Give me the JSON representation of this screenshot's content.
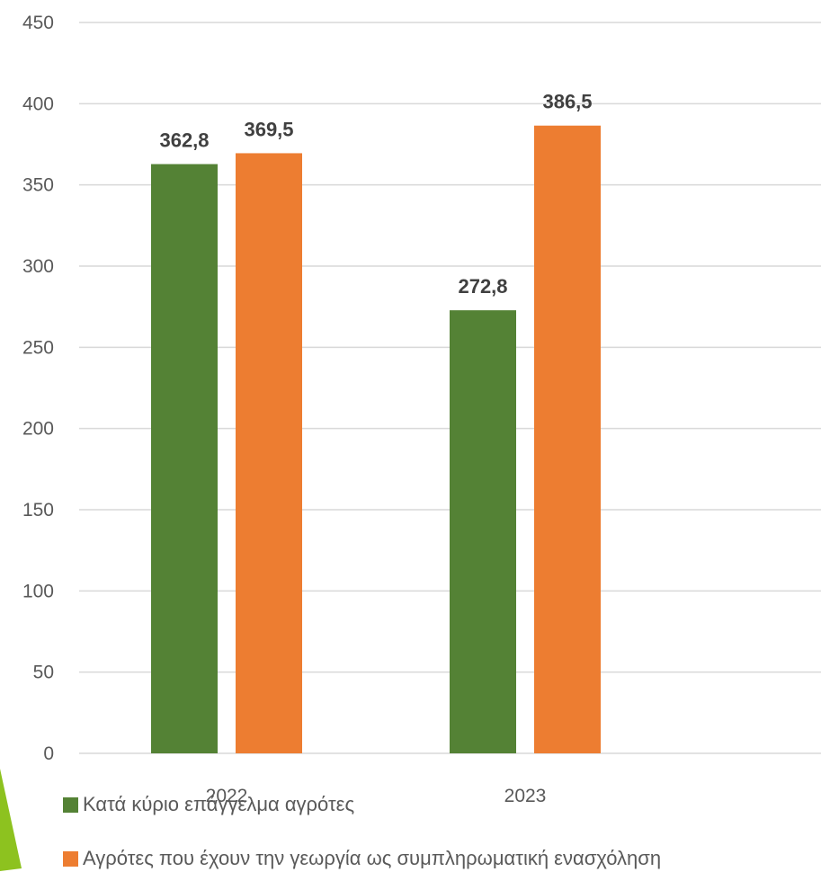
{
  "chart_data": {
    "type": "bar",
    "categories": [
      "2022",
      "2023"
    ],
    "series": [
      {
        "name": "Κατά κύριο επάγγελμα αγρότες",
        "values": [
          362.8,
          272.8
        ],
        "labels": [
          "362,8",
          "272,8"
        ],
        "color": "#548235"
      },
      {
        "name": "Αγρότες που έχουν την γεωργία ως συμπληρωματική ενασχόληση",
        "values": [
          369.5,
          386.5
        ],
        "labels": [
          "369,5",
          "386,5"
        ],
        "color": "#ED7D31"
      }
    ],
    "ylim": [
      0,
      450
    ],
    "yticks": [
      0,
      50,
      100,
      150,
      200,
      250,
      300,
      350,
      400,
      450
    ],
    "grid": true,
    "legend_position": "bottom-left",
    "colors": {
      "gridline": "#D9D9D9",
      "text": "#595959",
      "accent_shape": "#8DC21F"
    }
  }
}
